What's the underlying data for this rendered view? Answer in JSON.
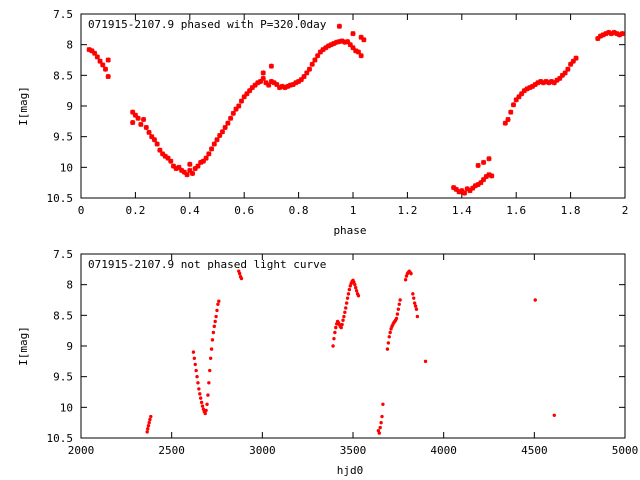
{
  "chart_data": [
    {
      "type": "scatter",
      "title": "071915-2107.9 phased with P=320.0day",
      "xlabel": "phase",
      "ylabel": "I[mag]",
      "xlim": [
        0,
        2
      ],
      "ylim": [
        10.5,
        7.5
      ],
      "y_inverted": true,
      "grid": false,
      "x_ticks": [
        "0",
        "0.2",
        "0.4",
        "0.6",
        "0.8",
        "1",
        "1.2",
        "1.4",
        "1.6",
        "1.8",
        "2"
      ],
      "y_ticks": [
        "7.5",
        "8",
        "8.5",
        "9",
        "9.5",
        "10",
        "10.5"
      ],
      "series": [
        {
          "color": "#ff0000",
          "marker": "star",
          "points": [
            [
              0.03,
              8.08
            ],
            [
              0.04,
              8.1
            ],
            [
              0.05,
              8.14
            ],
            [
              0.06,
              8.2
            ],
            [
              0.07,
              8.27
            ],
            [
              0.08,
              8.33
            ],
            [
              0.09,
              8.4
            ],
            [
              0.1,
              8.25
            ],
            [
              0.1,
              8.52
            ],
            [
              0.19,
              9.1
            ],
            [
              0.19,
              9.27
            ],
            [
              0.2,
              9.15
            ],
            [
              0.21,
              9.2
            ],
            [
              0.22,
              9.3
            ],
            [
              0.23,
              9.22
            ],
            [
              0.24,
              9.35
            ],
            [
              0.25,
              9.43
            ],
            [
              0.26,
              9.5
            ],
            [
              0.27,
              9.55
            ],
            [
              0.28,
              9.62
            ],
            [
              0.29,
              9.72
            ],
            [
              0.3,
              9.78
            ],
            [
              0.31,
              9.82
            ],
            [
              0.32,
              9.85
            ],
            [
              0.33,
              9.9
            ],
            [
              0.34,
              9.98
            ],
            [
              0.35,
              10.02
            ],
            [
              0.36,
              10.0
            ],
            [
              0.37,
              10.05
            ],
            [
              0.38,
              10.08
            ],
            [
              0.39,
              10.12
            ],
            [
              0.4,
              10.05
            ],
            [
              0.4,
              9.95
            ],
            [
              0.41,
              10.1
            ],
            [
              0.42,
              10.02
            ],
            [
              0.43,
              9.98
            ],
            [
              0.44,
              9.92
            ],
            [
              0.45,
              9.9
            ],
            [
              0.46,
              9.85
            ],
            [
              0.47,
              9.78
            ],
            [
              0.48,
              9.7
            ],
            [
              0.49,
              9.62
            ],
            [
              0.5,
              9.55
            ],
            [
              0.51,
              9.48
            ],
            [
              0.52,
              9.42
            ],
            [
              0.53,
              9.35
            ],
            [
              0.54,
              9.28
            ],
            [
              0.55,
              9.2
            ],
            [
              0.56,
              9.12
            ],
            [
              0.57,
              9.05
            ],
            [
              0.58,
              9.0
            ],
            [
              0.59,
              8.92
            ],
            [
              0.6,
              8.85
            ],
            [
              0.61,
              8.8
            ],
            [
              0.62,
              8.75
            ],
            [
              0.63,
              8.7
            ],
            [
              0.64,
              8.66
            ],
            [
              0.65,
              8.62
            ],
            [
              0.66,
              8.6
            ],
            [
              0.67,
              8.55
            ],
            [
              0.67,
              8.46
            ],
            [
              0.68,
              8.62
            ],
            [
              0.69,
              8.66
            ],
            [
              0.7,
              8.6
            ],
            [
              0.7,
              8.35
            ],
            [
              0.71,
              8.62
            ],
            [
              0.72,
              8.65
            ],
            [
              0.73,
              8.7
            ],
            [
              0.74,
              8.68
            ],
            [
              0.75,
              8.7
            ],
            [
              0.76,
              8.68
            ],
            [
              0.77,
              8.66
            ],
            [
              0.78,
              8.65
            ],
            [
              0.79,
              8.62
            ],
            [
              0.8,
              8.6
            ],
            [
              0.81,
              8.57
            ],
            [
              0.82,
              8.52
            ],
            [
              0.83,
              8.46
            ],
            [
              0.84,
              8.4
            ],
            [
              0.85,
              8.32
            ],
            [
              0.86,
              8.25
            ],
            [
              0.87,
              8.18
            ],
            [
              0.88,
              8.12
            ],
            [
              0.89,
              8.08
            ],
            [
              0.9,
              8.05
            ],
            [
              0.91,
              8.02
            ],
            [
              0.92,
              8.0
            ],
            [
              0.93,
              7.98
            ],
            [
              0.94,
              7.96
            ],
            [
              0.95,
              7.95
            ],
            [
              0.96,
              7.94
            ],
            [
              0.97,
              7.96
            ],
            [
              0.98,
              7.95
            ],
            [
              0.99,
              8.0
            ],
            [
              1.0,
              8.05
            ],
            [
              1.01,
              8.1
            ],
            [
              1.02,
              8.12
            ],
            [
              1.03,
              8.18
            ],
            [
              0.95,
              7.7
            ],
            [
              1.0,
              7.82
            ],
            [
              1.03,
              7.88
            ],
            [
              1.04,
              7.92
            ],
            [
              1.37,
              10.33
            ],
            [
              1.38,
              10.36
            ],
            [
              1.39,
              10.4
            ],
            [
              1.4,
              10.38
            ],
            [
              1.41,
              10.42
            ],
            [
              1.42,
              10.35
            ],
            [
              1.43,
              10.38
            ],
            [
              1.44,
              10.34
            ],
            [
              1.45,
              10.3
            ],
            [
              1.46,
              10.28
            ],
            [
              1.47,
              10.25
            ],
            [
              1.48,
              10.2
            ],
            [
              1.49,
              10.15
            ],
            [
              1.5,
              10.12
            ],
            [
              1.51,
              10.14
            ],
            [
              1.46,
              9.97
            ],
            [
              1.48,
              9.92
            ],
            [
              1.5,
              9.86
            ],
            [
              1.56,
              9.28
            ],
            [
              1.57,
              9.22
            ],
            [
              1.58,
              9.1
            ],
            [
              1.59,
              8.98
            ],
            [
              1.6,
              8.9
            ],
            [
              1.61,
              8.85
            ],
            [
              1.62,
              8.8
            ],
            [
              1.63,
              8.75
            ],
            [
              1.64,
              8.72
            ],
            [
              1.65,
              8.7
            ],
            [
              1.66,
              8.68
            ],
            [
              1.67,
              8.65
            ],
            [
              1.68,
              8.62
            ],
            [
              1.69,
              8.6
            ],
            [
              1.7,
              8.62
            ],
            [
              1.71,
              8.6
            ],
            [
              1.72,
              8.62
            ],
            [
              1.73,
              8.6
            ],
            [
              1.74,
              8.62
            ],
            [
              1.75,
              8.58
            ],
            [
              1.76,
              8.55
            ],
            [
              1.77,
              8.5
            ],
            [
              1.78,
              8.46
            ],
            [
              1.79,
              8.4
            ],
            [
              1.8,
              8.32
            ],
            [
              1.81,
              8.27
            ],
            [
              1.82,
              8.22
            ],
            [
              1.9,
              7.9
            ],
            [
              1.91,
              7.86
            ],
            [
              1.92,
              7.84
            ],
            [
              1.93,
              7.82
            ],
            [
              1.94,
              7.8
            ],
            [
              1.95,
              7.82
            ],
            [
              1.96,
              7.8
            ],
            [
              1.97,
              7.82
            ],
            [
              1.98,
              7.84
            ],
            [
              1.99,
              7.82
            ]
          ]
        }
      ]
    },
    {
      "type": "scatter",
      "title": "071915-2107.9 not phased light curve",
      "xlabel": "hjd0",
      "ylabel": "I[mag]",
      "xlim": [
        2000,
        5000
      ],
      "ylim": [
        10.5,
        7.5
      ],
      "y_inverted": true,
      "grid": false,
      "x_ticks": [
        "2000",
        "2500",
        "3000",
        "3500",
        "4000",
        "4500",
        "5000"
      ],
      "y_ticks": [
        "7.5",
        "8",
        "8.5",
        "9",
        "9.5",
        "10",
        "10.5"
      ],
      "series": [
        {
          "color": "#ff0000",
          "marker": "dot",
          "points": [
            [
              2365,
              10.4
            ],
            [
              2368,
              10.35
            ],
            [
              2372,
              10.3
            ],
            [
              2376,
              10.25
            ],
            [
              2380,
              10.2
            ],
            [
              2385,
              10.15
            ],
            [
              2620,
              9.1
            ],
            [
              2625,
              9.2
            ],
            [
              2630,
              9.3
            ],
            [
              2635,
              9.4
            ],
            [
              2640,
              9.5
            ],
            [
              2645,
              9.6
            ],
            [
              2650,
              9.7
            ],
            [
              2655,
              9.78
            ],
            [
              2660,
              9.85
            ],
            [
              2665,
              9.92
            ],
            [
              2670,
              9.98
            ],
            [
              2675,
              10.03
            ],
            [
              2680,
              10.07
            ],
            [
              2685,
              10.1
            ],
            [
              2690,
              10.05
            ],
            [
              2695,
              9.95
            ],
            [
              2700,
              9.8
            ],
            [
              2705,
              9.6
            ],
            [
              2710,
              9.4
            ],
            [
              2715,
              9.2
            ],
            [
              2720,
              9.05
            ],
            [
              2725,
              8.9
            ],
            [
              2730,
              8.78
            ],
            [
              2735,
              8.68
            ],
            [
              2740,
              8.6
            ],
            [
              2745,
              8.52
            ],
            [
              2750,
              8.42
            ],
            [
              2755,
              8.32
            ],
            [
              2760,
              8.27
            ],
            [
              2870,
              7.78
            ],
            [
              2875,
              7.82
            ],
            [
              2880,
              7.87
            ],
            [
              2885,
              7.9
            ],
            [
              3390,
              9.0
            ],
            [
              3395,
              8.88
            ],
            [
              3400,
              8.78
            ],
            [
              3405,
              8.7
            ],
            [
              3410,
              8.64
            ],
            [
              3415,
              8.6
            ],
            [
              3420,
              8.62
            ],
            [
              3425,
              8.65
            ],
            [
              3430,
              8.68
            ],
            [
              3435,
              8.7
            ],
            [
              3440,
              8.65
            ],
            [
              3445,
              8.58
            ],
            [
              3450,
              8.52
            ],
            [
              3455,
              8.45
            ],
            [
              3460,
              8.38
            ],
            [
              3465,
              8.3
            ],
            [
              3470,
              8.22
            ],
            [
              3475,
              8.15
            ],
            [
              3480,
              8.08
            ],
            [
              3485,
              8.02
            ],
            [
              3490,
              7.98
            ],
            [
              3495,
              7.95
            ],
            [
              3500,
              7.93
            ],
            [
              3505,
              7.96
            ],
            [
              3510,
              8.0
            ],
            [
              3515,
              8.05
            ],
            [
              3520,
              8.1
            ],
            [
              3525,
              8.15
            ],
            [
              3530,
              8.18
            ],
            [
              3640,
              10.38
            ],
            [
              3645,
              10.42
            ],
            [
              3650,
              10.33
            ],
            [
              3655,
              10.25
            ],
            [
              3660,
              10.15
            ],
            [
              3665,
              9.95
            ],
            [
              3690,
              9.05
            ],
            [
              3695,
              8.95
            ],
            [
              3700,
              8.85
            ],
            [
              3705,
              8.78
            ],
            [
              3710,
              8.72
            ],
            [
              3715,
              8.68
            ],
            [
              3720,
              8.65
            ],
            [
              3725,
              8.62
            ],
            [
              3730,
              8.6
            ],
            [
              3735,
              8.58
            ],
            [
              3740,
              8.55
            ],
            [
              3745,
              8.48
            ],
            [
              3750,
              8.4
            ],
            [
              3755,
              8.32
            ],
            [
              3760,
              8.25
            ],
            [
              3790,
              7.92
            ],
            [
              3795,
              7.86
            ],
            [
              3800,
              7.82
            ],
            [
              3805,
              7.8
            ],
            [
              3810,
              7.78
            ],
            [
              3815,
              7.8
            ],
            [
              3820,
              7.82
            ],
            [
              3830,
              8.15
            ],
            [
              3835,
              8.22
            ],
            [
              3840,
              8.3
            ],
            [
              3845,
              8.35
            ],
            [
              3850,
              8.4
            ],
            [
              3855,
              8.52
            ],
            [
              3900,
              9.25
            ],
            [
              4505,
              8.25
            ],
            [
              4610,
              10.13
            ]
          ]
        }
      ]
    }
  ]
}
